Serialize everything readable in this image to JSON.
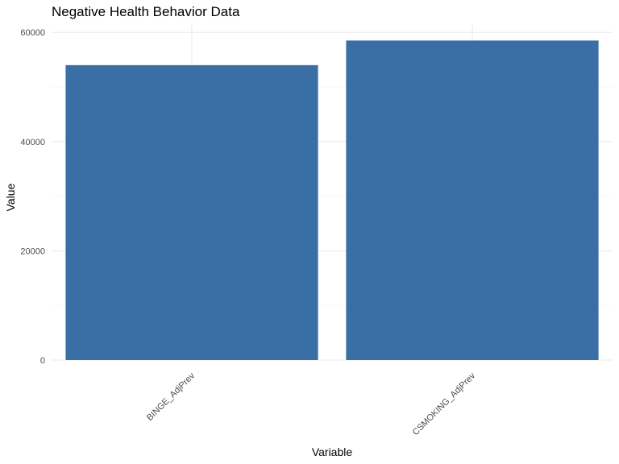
{
  "chart_data": {
    "type": "bar",
    "title": "Negative Health Behavior Data",
    "xlabel": "Variable",
    "ylabel": "Value",
    "categories": [
      "BINGE_AdjPrev",
      "CSMOKING_AdjPrev"
    ],
    "values": [
      54000,
      58500
    ],
    "ylim": [
      0,
      61500
    ],
    "yticks": [
      0,
      20000,
      40000,
      60000
    ],
    "ytick_labels": [
      "0",
      "20000",
      "40000",
      "60000"
    ],
    "bar_color": "#3a6fa6",
    "grid": true,
    "legend": "none"
  }
}
